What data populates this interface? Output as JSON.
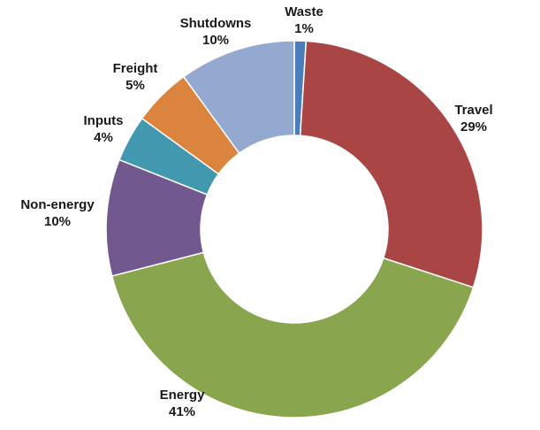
{
  "chart_data": {
    "type": "pie",
    "style": "donut",
    "start_angle_deg": 0,
    "direction": "clockwise",
    "slices": [
      {
        "name": "Waste",
        "value": 1,
        "label": "1%",
        "color": "#4a7ebb"
      },
      {
        "name": "Travel",
        "value": 29,
        "label": "29%",
        "color": "#a94545"
      },
      {
        "name": "Energy",
        "value": 41,
        "label": "41%",
        "color": "#89a54e"
      },
      {
        "name": "Non-energy",
        "value": 10,
        "label": "10%",
        "color": "#71588f"
      },
      {
        "name": "Inputs",
        "value": 4,
        "label": "4%",
        "color": "#4198af"
      },
      {
        "name": "Freight",
        "value": 5,
        "label": "5%",
        "color": "#db843d"
      },
      {
        "name": "Shutdowns",
        "value": 10,
        "label": "10%",
        "color": "#93a9cf"
      }
    ]
  }
}
